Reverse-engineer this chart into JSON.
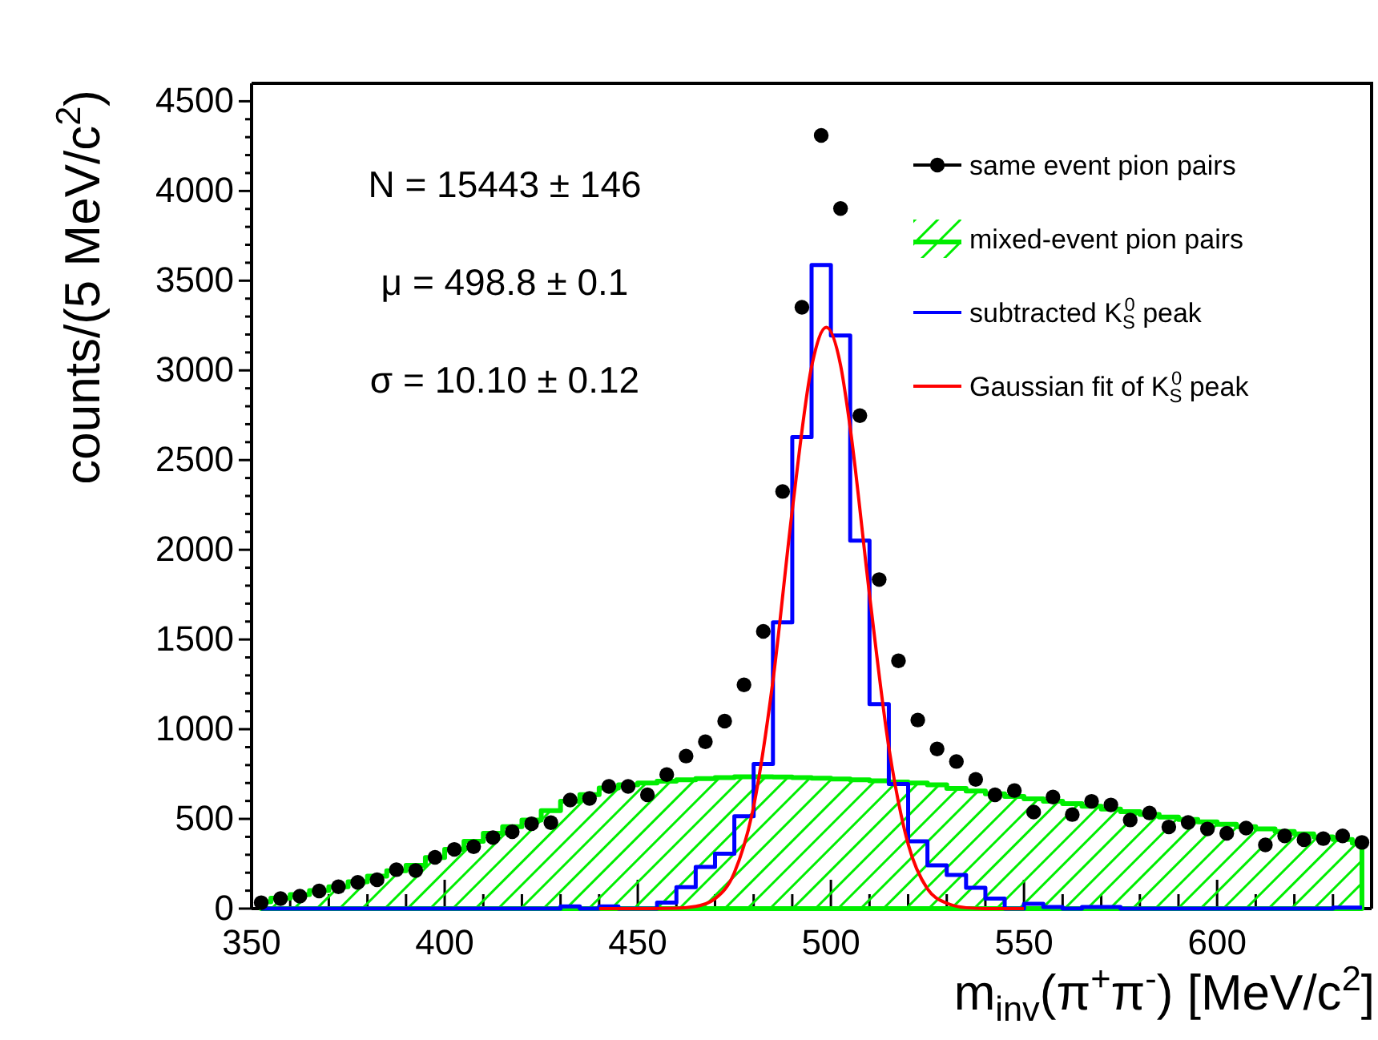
{
  "chart_data": {
    "type": "line",
    "xlabel": "m$_{inv}$(π$^{+}$π$^{-}$) [MeV/c$^{2}$]",
    "ylabel": "counts/(5 MeV/c$^{2}$)",
    "xlim": [
      350,
      640
    ],
    "xticks": [
      350,
      {
        "value": 360,
        "label": null
      },
      {
        "value": 370,
        "label": null
      },
      {
        "value": 380,
        "label": null
      },
      {
        "value": 390,
        "label": null
      },
      400,
      {
        "value": 410,
        "label": null
      },
      {
        "value": 420,
        "label": null
      },
      {
        "value": 430,
        "label": null
      },
      {
        "value": 440,
        "label": null
      },
      450,
      {
        "value": 460,
        "label": null
      },
      {
        "value": 470,
        "label": null
      },
      {
        "value": 480,
        "label": null
      },
      {
        "value": 490,
        "label": null
      },
      500,
      {
        "value": 510,
        "label": null
      },
      {
        "value": 520,
        "label": null
      },
      {
        "value": 530,
        "label": null
      },
      {
        "value": 540,
        "label": null
      },
      550,
      {
        "value": 560,
        "label": null
      },
      {
        "value": 570,
        "label": null
      },
      {
        "value": 580,
        "label": null
      },
      {
        "value": 590,
        "label": null
      },
      600,
      {
        "value": 610,
        "label": null
      },
      {
        "value": 620,
        "label": null
      },
      {
        "value": 630,
        "label": null
      },
      {
        "value": 640,
        "label": null
      }
    ],
    "ylim": [
      0,
      4600
    ],
    "yticks": [
      0,
      {
        "value": 100,
        "label": null
      },
      {
        "value": 200,
        "label": null
      },
      {
        "value": 300,
        "label": null
      },
      {
        "value": 400,
        "label": null
      },
      500,
      {
        "value": 600,
        "label": null
      },
      {
        "value": 700,
        "label": null
      },
      {
        "value": 800,
        "label": null
      },
      {
        "value": 900,
        "label": null
      },
      1000,
      {
        "value": 1100,
        "label": null
      },
      {
        "value": 1200,
        "label": null
      },
      {
        "value": 1300,
        "label": null
      },
      {
        "value": 1400,
        "label": null
      },
      1500,
      {
        "value": 1600,
        "label": null
      },
      {
        "value": 1700,
        "label": null
      },
      {
        "value": 1800,
        "label": null
      },
      {
        "value": 1900,
        "label": null
      },
      2000,
      {
        "value": 2100,
        "label": null
      },
      {
        "value": 2200,
        "label": null
      },
      {
        "value": 2300,
        "label": null
      },
      {
        "value": 2400,
        "label": null
      },
      2500,
      {
        "value": 2600,
        "label": null
      },
      {
        "value": 2700,
        "label": null
      },
      {
        "value": 2800,
        "label": null
      },
      {
        "value": 2900,
        "label": null
      },
      3000,
      {
        "value": 3100,
        "label": null
      },
      {
        "value": 3200,
        "label": null
      },
      {
        "value": 3300,
        "label": null
      },
      {
        "value": 3400,
        "label": null
      },
      3500,
      {
        "value": 3600,
        "label": null
      },
      {
        "value": 3700,
        "label": null
      },
      {
        "value": 3800,
        "label": null
      },
      {
        "value": 3900,
        "label": null
      },
      4000,
      {
        "value": 4100,
        "label": null
      },
      {
        "value": 4200,
        "label": null
      },
      {
        "value": 4300,
        "label": null
      },
      {
        "value": 4400,
        "label": null
      },
      4500
    ],
    "series": [
      {
        "name": "same event pion pairs",
        "type": "scatter",
        "marker": "circle",
        "color": "#000000",
        "x": [
          352.5,
          357.5,
          362.5,
          367.5,
          372.5,
          377.5,
          382.5,
          387.5,
          392.5,
          397.5,
          402.5,
          407.5,
          412.5,
          417.5,
          422.5,
          427.5,
          432.5,
          437.5,
          442.5,
          447.5,
          452.5,
          457.5,
          462.5,
          467.5,
          472.5,
          477.5,
          482.5,
          487.5,
          492.5,
          497.5,
          502.5,
          507.5,
          512.5,
          517.5,
          522.5,
          527.5,
          532.5,
          537.5,
          542.5,
          547.5,
          552.5,
          557.5,
          562.5,
          567.5,
          572.5,
          577.5,
          582.5,
          587.5,
          592.5,
          597.5,
          602.5,
          607.5,
          612.5,
          617.5,
          622.5,
          627.5,
          632.5,
          637.5
        ],
        "values": [
          33,
          56,
          69,
          98,
          122,
          146,
          161,
          217,
          212,
          286,
          330,
          345,
          396,
          429,
          473,
          479,
          605,
          614,
          681,
          681,
          634,
          747,
          850,
          930,
          1045,
          1247,
          1545,
          2325,
          3352,
          4310,
          3902,
          2748,
          1834,
          1381,
          1051,
          890,
          820,
          720,
          634,
          658,
          538,
          622,
          524,
          598,
          578,
          494,
          533,
          455,
          480,
          444,
          420,
          449,
          355,
          405,
          384,
          390,
          405,
          369
        ]
      },
      {
        "name": "mixed-event pion pairs",
        "type": "area",
        "color": "#00ee00",
        "x": [
          352.5,
          357.5,
          362.5,
          367.5,
          372.5,
          377.5,
          382.5,
          387.5,
          392.5,
          397.5,
          402.5,
          407.5,
          412.5,
          417.5,
          422.5,
          427.5,
          432.5,
          437.5,
          442.5,
          447.5,
          452.5,
          457.5,
          462.5,
          467.5,
          472.5,
          477.5,
          482.5,
          487.5,
          492.5,
          497.5,
          502.5,
          507.5,
          512.5,
          517.5,
          522.5,
          527.5,
          532.5,
          537.5,
          542.5,
          547.5,
          552.5,
          557.5,
          562.5,
          567.5,
          572.5,
          577.5,
          582.5,
          587.5,
          592.5,
          597.5,
          602.5,
          607.5,
          612.5,
          617.5,
          622.5,
          627.5,
          632.5,
          637.5
        ],
        "values": [
          38,
          58,
          78,
          100,
          122,
          150,
          181,
          211,
          241,
          285,
          330,
          375,
          420,
          457,
          494,
          546,
          598,
          635,
          672,
          690,
          700,
          710,
          718,
          725,
          730,
          735,
          735,
          733,
          730,
          727,
          722,
          718,
          712,
          706,
          700,
          690,
          670,
          655,
          640,
          625,
          612,
          598,
          585,
          570,
          555,
          540,
          525,
          510,
          497,
          484,
          470,
          457,
          444,
          430,
          416,
          400,
          385,
          365
        ]
      },
      {
        "name": "subtracted K$_{S}$$^{0}$ peak",
        "type": "step",
        "color": "#0000ff",
        "x": [
          352.5,
          357.5,
          362.5,
          367.5,
          372.5,
          377.5,
          382.5,
          387.5,
          392.5,
          397.5,
          402.5,
          407.5,
          412.5,
          417.5,
          422.5,
          427.5,
          432.5,
          437.5,
          442.5,
          447.5,
          452.5,
          457.5,
          462.5,
          467.5,
          472.5,
          477.5,
          482.5,
          487.5,
          492.5,
          497.5,
          502.5,
          507.5,
          512.5,
          517.5,
          522.5,
          527.5,
          532.5,
          537.5,
          542.5,
          547.5,
          552.5,
          557.5,
          562.5,
          567.5,
          572.5,
          577.5,
          582.5,
          587.5,
          592.5,
          597.5,
          602.5,
          607.5,
          612.5,
          617.5,
          622.5,
          627.5,
          632.5,
          637.5
        ],
        "values": [
          0,
          0,
          0,
          0,
          0,
          0,
          0,
          0,
          0,
          0,
          0,
          0,
          0,
          0,
          0,
          0,
          12,
          0,
          12,
          0,
          0,
          33,
          120,
          232,
          306,
          515,
          806,
          1596,
          2628,
          3587,
          3194,
          2051,
          1140,
          694,
          375,
          241,
          188,
          116,
          56,
          0,
          27,
          9,
          0,
          9,
          9,
          0,
          0,
          0,
          0,
          0,
          0,
          0,
          0,
          0,
          0,
          0,
          6,
          6
        ]
      },
      {
        "name": "Gaussian fit of K$_{S}$$^{0}$ peak",
        "color": "#ff0000",
        "x": [
          440,
          450,
          460,
          465,
          470,
          475,
          480,
          485,
          490,
          495,
          498.8,
          502.5,
          505,
          510,
          515,
          520,
          525,
          530,
          535,
          540,
          550
        ],
        "values": [
          0,
          0,
          2,
          12,
          55,
          200,
          570,
          1270,
          2220,
          3020,
          3240,
          3030,
          2680,
          1750,
          900,
          360,
          110,
          30,
          5,
          0,
          0
        ]
      }
    ],
    "annotations": [
      "N = 15443 ± 146",
      "μ = 498.8 ± 0.1",
      "σ = 10.10 ± 0.12"
    ],
    "legend": "top right"
  }
}
